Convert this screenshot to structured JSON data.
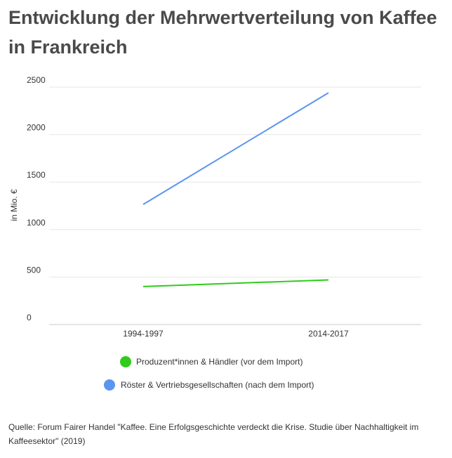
{
  "title": "Entwicklung der Mehrwertverteilung von Kaffee in Frankreich",
  "source": "Quelle: Forum Fairer Handel \"Kaffee. Eine Erfolgsgeschichte verdeckt die Krise. Studie über Nachhaltigkeit im Kaffeesektor\" (2019)",
  "chart_data": {
    "type": "line",
    "categories": [
      "1994-1997",
      "2014-2017"
    ],
    "ylabel": "in Mio. €",
    "ylim": [
      0,
      2500
    ],
    "yticks": [
      "0",
      "500",
      "1000",
      "1500",
      "2000",
      "2500"
    ],
    "grid": true,
    "legend_placement": "bottom",
    "series": [
      {
        "name": "Produzent*innen & Händler (vor dem Import)",
        "values": [
          400,
          470
        ],
        "color": "#2ecc1a"
      },
      {
        "name": "Röster & Vertriebsgesellschaften (nach dem Import)",
        "values": [
          1265,
          2440
        ],
        "color": "#5b95f0"
      }
    ]
  }
}
